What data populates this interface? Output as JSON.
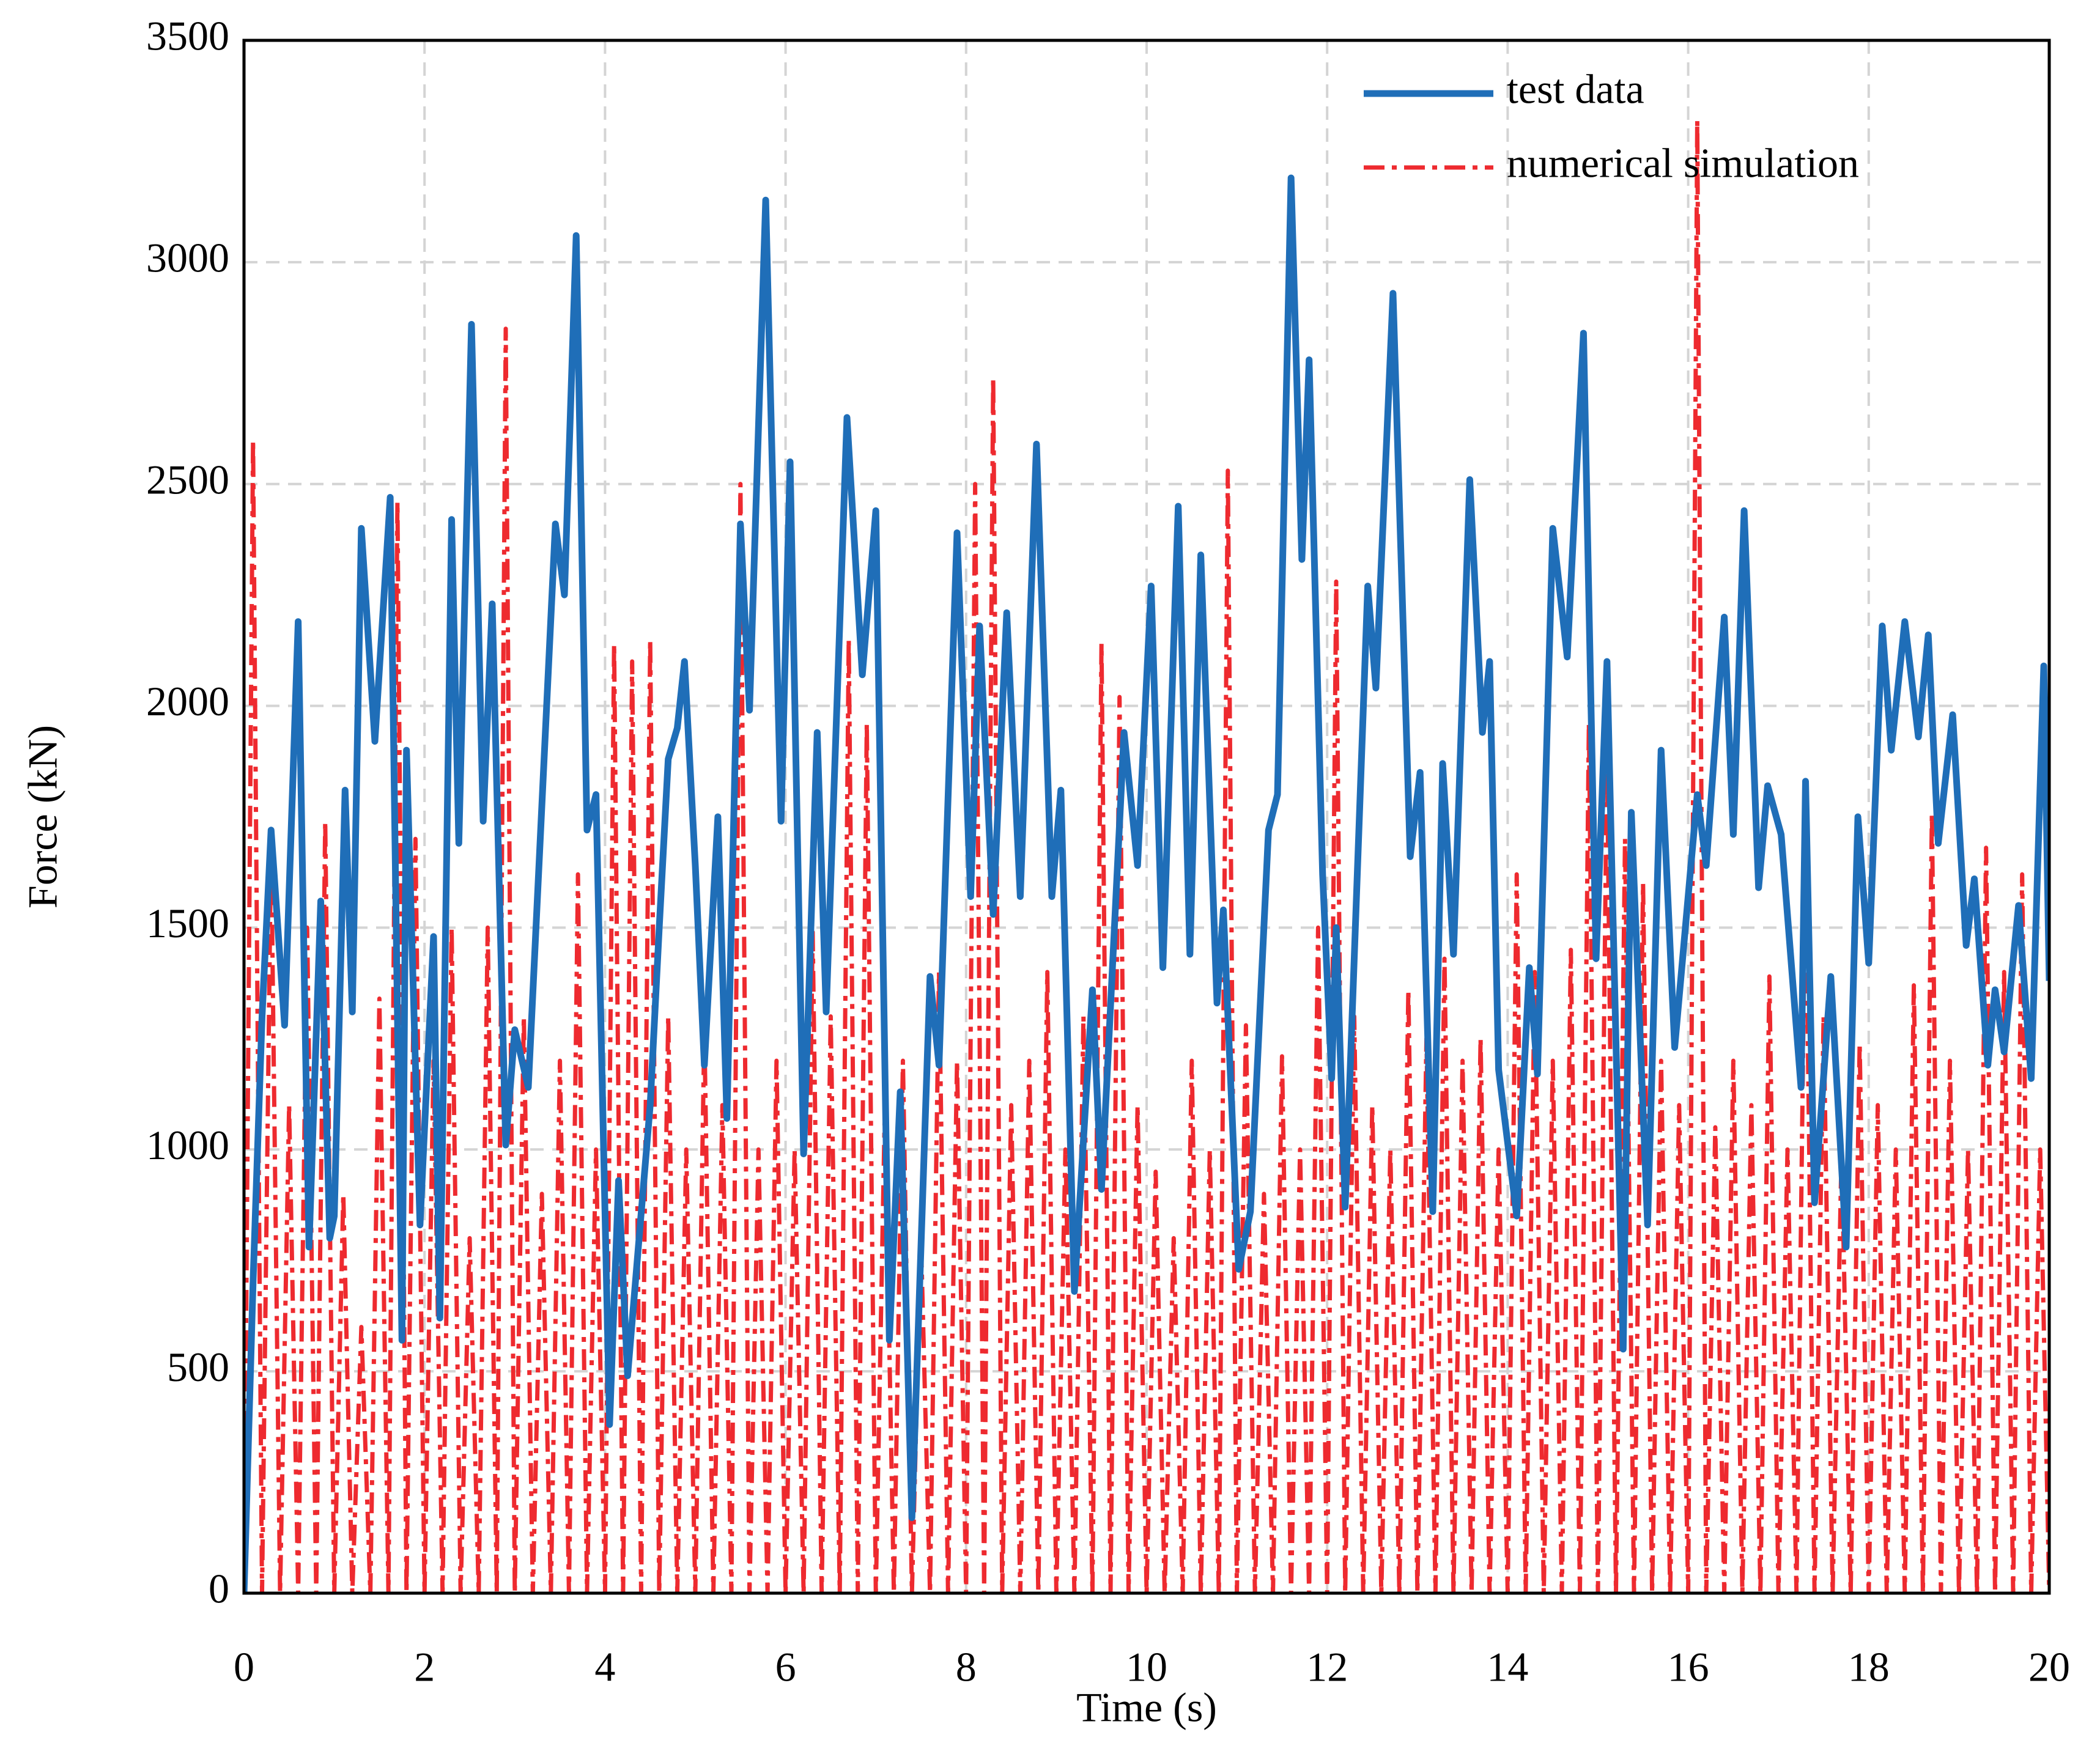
{
  "chart_data": {
    "type": "line",
    "xlabel": "Time (s)",
    "ylabel": "Force (kN)",
    "xlim": [
      0,
      20
    ],
    "xticks": [
      0,
      2,
      4,
      6,
      8,
      10,
      12,
      14,
      16,
      18,
      20
    ],
    "ylim": [
      0,
      3500
    ],
    "yticks": [
      0,
      500,
      1000,
      1500,
      2000,
      2500,
      3000,
      3500
    ],
    "grid": true,
    "legend": "upper right",
    "series": [
      {
        "name": "test data",
        "color": "#1f6eb8",
        "style": "solid",
        "x": [
          0,
          0.1,
          0.2,
          0.3,
          0.45,
          0.6,
          0.72,
          0.85,
          0.95,
          1.0,
          1.12,
          1.2,
          1.3,
          1.45,
          1.62,
          1.75,
          1.8,
          1.95,
          2.1,
          2.17,
          2.3,
          2.38,
          2.52,
          2.65,
          2.75,
          2.9,
          3.0,
          3.15,
          3.45,
          3.55,
          3.68,
          3.8,
          3.9,
          4.05,
          4.15,
          4.25,
          4.5,
          4.6,
          4.7,
          4.8,
          4.88,
          5.0,
          5.1,
          5.25,
          5.35,
          5.5,
          5.6,
          5.78,
          5.95,
          6.05,
          6.2,
          6.35,
          6.45,
          6.68,
          6.85,
          7.0,
          7.15,
          7.27,
          7.4,
          7.6,
          7.7,
          7.9,
          8.05,
          8.15,
          8.3,
          8.45,
          8.6,
          8.78,
          8.95,
          9.05,
          9.2,
          9.4,
          9.5,
          9.75,
          9.9,
          10.05,
          10.18,
          10.35,
          10.48,
          10.6,
          10.78,
          10.85,
          11.02,
          11.15,
          11.35,
          11.45,
          11.6,
          11.72,
          11.8,
          11.95,
          12.05,
          12.1,
          12.2,
          12.45,
          12.54,
          12.73,
          12.92,
          13.03,
          13.17,
          13.28,
          13.4,
          13.58,
          13.72,
          13.8,
          13.9,
          14.1,
          14.24,
          14.33,
          14.5,
          14.66,
          14.84,
          14.98,
          15.1,
          15.28,
          15.37,
          15.55,
          15.7,
          15.85,
          16.1,
          16.2,
          16.4,
          16.5,
          16.62,
          16.78,
          16.88,
          17.03,
          17.25,
          17.3,
          17.4,
          17.58,
          17.75,
          17.88,
          18.0,
          18.15,
          18.25,
          18.4,
          18.55,
          18.66,
          18.77,
          18.93,
          19.08,
          19.17,
          19.32,
          19.4,
          19.5,
          19.66,
          19.8,
          19.94,
          20.0
        ],
        "values": [
          0,
          700,
          1300,
          1720,
          1280,
          2190,
          780,
          1560,
          800,
          850,
          1810,
          1310,
          2400,
          1920,
          2470,
          570,
          1900,
          830,
          1480,
          620,
          2420,
          1690,
          2860,
          1740,
          2230,
          1010,
          1270,
          1140,
          2410,
          2250,
          3060,
          1720,
          1800,
          380,
          930,
          490,
          1100,
          1500,
          1880,
          1950,
          2100,
          1640,
          1190,
          1750,
          1070,
          2410,
          1990,
          3140,
          1740,
          2550,
          990,
          1940,
          1310,
          2650,
          2070,
          2440,
          570,
          1130,
          170,
          1390,
          1190,
          2390,
          1570,
          2180,
          1530,
          2210,
          1570,
          2590,
          1570,
          1810,
          680,
          1360,
          910,
          1940,
          1640,
          2270,
          1410,
          2450,
          1440,
          2340,
          1330,
          1540,
          730,
          860,
          1720,
          1800,
          3190,
          2330,
          2780,
          1620,
          1160,
          1500,
          870,
          2270,
          2040,
          2930,
          1660,
          1850,
          860,
          1870,
          1440,
          2510,
          1940,
          2100,
          1180,
          850,
          1410,
          1170,
          2400,
          2110,
          2840,
          1430,
          2100,
          550,
          1760,
          830,
          1900,
          1230,
          1800,
          1640,
          2200,
          1710,
          2440,
          1590,
          1820,
          1710,
          1140,
          1830,
          880,
          1390,
          780,
          1750,
          1420,
          2180,
          1900,
          2190,
          1930,
          2160,
          1690,
          1980,
          1460,
          1610,
          1190,
          1360,
          1220,
          1550,
          1160,
          2090,
          1380
        ]
      },
      {
        "name": "numerical simulation",
        "color": "#ee2a2f",
        "style": "dashdot",
        "x": [
          0,
          0.1,
          0.2,
          0.3,
          0.4,
          0.5,
          0.6,
          0.7,
          0.8,
          0.9,
          1,
          1.1,
          1.2,
          1.3,
          1.4,
          1.5,
          1.6,
          1.7,
          1.8,
          1.9,
          2,
          2.1,
          2.2,
          2.3,
          2.4,
          2.5,
          2.6,
          2.7,
          2.8,
          2.9,
          3,
          3.1,
          3.2,
          3.3,
          3.4,
          3.5,
          3.6,
          3.7,
          3.8,
          3.9,
          4,
          4.1,
          4.2,
          4.3,
          4.4,
          4.5,
          4.6,
          4.7,
          4.8,
          4.9,
          5,
          5.1,
          5.2,
          5.3,
          5.4,
          5.5,
          5.6,
          5.7,
          5.8,
          5.9,
          6,
          6.1,
          6.2,
          6.3,
          6.4,
          6.5,
          6.6,
          6.7,
          6.8,
          6.9,
          7,
          7.1,
          7.2,
          7.3,
          7.4,
          7.5,
          7.6,
          7.7,
          7.8,
          7.9,
          8,
          8.1,
          8.2,
          8.3,
          8.4,
          8.5,
          8.6,
          8.7,
          8.8,
          8.9,
          9,
          9.1,
          9.2,
          9.3,
          9.4,
          9.5,
          9.6,
          9.7,
          9.8,
          9.9,
          10,
          10.1,
          10.2,
          10.3,
          10.4,
          10.5,
          10.6,
          10.7,
          10.8,
          10.9,
          11,
          11.1,
          11.2,
          11.3,
          11.4,
          11.5,
          11.6,
          11.7,
          11.8,
          11.9,
          12,
          12.1,
          12.2,
          12.3,
          12.4,
          12.5,
          12.6,
          12.7,
          12.8,
          12.9,
          13,
          13.1,
          13.2,
          13.3,
          13.4,
          13.5,
          13.6,
          13.7,
          13.8,
          13.9,
          14,
          14.1,
          14.2,
          14.3,
          14.4,
          14.5,
          14.6,
          14.7,
          14.8,
          14.9,
          15,
          15.1,
          15.2,
          15.3,
          15.4,
          15.5,
          15.6,
          15.7,
          15.8,
          15.9,
          16,
          16.1,
          16.2,
          16.3,
          16.4,
          16.5,
          16.6,
          16.7,
          16.8,
          16.9,
          17,
          17.1,
          17.2,
          17.3,
          17.4,
          17.5,
          17.6,
          17.7,
          17.8,
          17.9,
          18,
          18.1,
          18.2,
          18.3,
          18.4,
          18.5,
          18.6,
          18.7,
          18.8,
          18.9,
          19,
          19.1,
          19.2,
          19.3,
          19.4,
          19.5,
          19.6,
          19.7,
          19.8,
          19.9,
          20
        ],
        "values": [
          0,
          2600,
          0,
          1700,
          0,
          1100,
          0,
          1500,
          0,
          1740,
          0,
          900,
          0,
          600,
          0,
          1340,
          0,
          2460,
          0,
          1700,
          0,
          1200,
          0,
          1500,
          0,
          800,
          0,
          1500,
          0,
          2850,
          0,
          1300,
          0,
          900,
          0,
          1200,
          0,
          1620,
          0,
          1000,
          0,
          2140,
          0,
          2100,
          0,
          2150,
          0,
          1300,
          0,
          1000,
          0,
          1270,
          0,
          1100,
          0,
          2500,
          0,
          1000,
          0,
          1200,
          0,
          1000,
          0,
          1490,
          0,
          1300,
          0,
          2150,
          0,
          1960,
          0,
          1100,
          0,
          1200,
          0,
          800,
          0,
          1400,
          0,
          1200,
          0,
          2500,
          0,
          2740,
          0,
          1100,
          0,
          1200,
          0,
          1400,
          0,
          1000,
          0,
          1300,
          0,
          2140,
          0,
          2020,
          0,
          1100,
          0,
          950,
          0,
          800,
          0,
          1200,
          0,
          1000,
          0,
          2530,
          0,
          1280,
          0,
          900,
          0,
          1210,
          0,
          1000,
          0,
          1500,
          0,
          2280,
          0,
          1300,
          0,
          1100,
          0,
          1000,
          0,
          1360,
          0,
          1250,
          0,
          1430,
          0,
          1200,
          0,
          1250,
          0,
          1000,
          0,
          1620,
          0,
          1400,
          0,
          1200,
          0,
          1450,
          0,
          1960,
          0,
          1900,
          0,
          1700,
          0,
          1600,
          0,
          1200,
          0,
          1100,
          0,
          3320,
          0,
          1050,
          0,
          1200,
          0,
          1100,
          0,
          1390,
          0,
          1000,
          0,
          1680,
          0,
          1300,
          0,
          1000,
          0,
          1240,
          0,
          1100,
          0,
          1000,
          0,
          1370,
          0,
          1760,
          0,
          1200,
          0,
          1000,
          0,
          1680,
          0,
          1400,
          0,
          1620,
          0,
          1000,
          0
        ]
      }
    ]
  }
}
